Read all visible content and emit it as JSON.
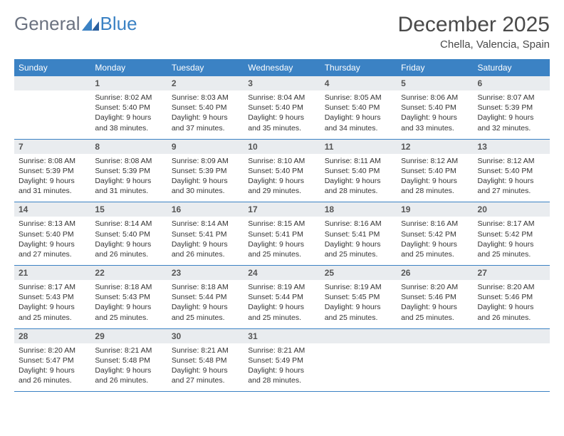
{
  "logo": {
    "general": "General",
    "blue": "Blue"
  },
  "title": "December 2025",
  "location": "Chella, Valencia, Spain",
  "colors": {
    "header_bg": "#3b82c4",
    "header_text": "#ffffff",
    "daynum_bg": "#e9ecef",
    "border": "#3b82c4",
    "text": "#333333",
    "title_text": "#4a4a4a"
  },
  "weekdays": [
    "Sunday",
    "Monday",
    "Tuesday",
    "Wednesday",
    "Thursday",
    "Friday",
    "Saturday"
  ],
  "weeks": [
    [
      null,
      {
        "n": "1",
        "sr": "8:02 AM",
        "ss": "5:40 PM",
        "dl": "9 hours and 38 minutes."
      },
      {
        "n": "2",
        "sr": "8:03 AM",
        "ss": "5:40 PM",
        "dl": "9 hours and 37 minutes."
      },
      {
        "n": "3",
        "sr": "8:04 AM",
        "ss": "5:40 PM",
        "dl": "9 hours and 35 minutes."
      },
      {
        "n": "4",
        "sr": "8:05 AM",
        "ss": "5:40 PM",
        "dl": "9 hours and 34 minutes."
      },
      {
        "n": "5",
        "sr": "8:06 AM",
        "ss": "5:40 PM",
        "dl": "9 hours and 33 minutes."
      },
      {
        "n": "6",
        "sr": "8:07 AM",
        "ss": "5:39 PM",
        "dl": "9 hours and 32 minutes."
      }
    ],
    [
      {
        "n": "7",
        "sr": "8:08 AM",
        "ss": "5:39 PM",
        "dl": "9 hours and 31 minutes."
      },
      {
        "n": "8",
        "sr": "8:08 AM",
        "ss": "5:39 PM",
        "dl": "9 hours and 31 minutes."
      },
      {
        "n": "9",
        "sr": "8:09 AM",
        "ss": "5:39 PM",
        "dl": "9 hours and 30 minutes."
      },
      {
        "n": "10",
        "sr": "8:10 AM",
        "ss": "5:40 PM",
        "dl": "9 hours and 29 minutes."
      },
      {
        "n": "11",
        "sr": "8:11 AM",
        "ss": "5:40 PM",
        "dl": "9 hours and 28 minutes."
      },
      {
        "n": "12",
        "sr": "8:12 AM",
        "ss": "5:40 PM",
        "dl": "9 hours and 28 minutes."
      },
      {
        "n": "13",
        "sr": "8:12 AM",
        "ss": "5:40 PM",
        "dl": "9 hours and 27 minutes."
      }
    ],
    [
      {
        "n": "14",
        "sr": "8:13 AM",
        "ss": "5:40 PM",
        "dl": "9 hours and 27 minutes."
      },
      {
        "n": "15",
        "sr": "8:14 AM",
        "ss": "5:40 PM",
        "dl": "9 hours and 26 minutes."
      },
      {
        "n": "16",
        "sr": "8:14 AM",
        "ss": "5:41 PM",
        "dl": "9 hours and 26 minutes."
      },
      {
        "n": "17",
        "sr": "8:15 AM",
        "ss": "5:41 PM",
        "dl": "9 hours and 25 minutes."
      },
      {
        "n": "18",
        "sr": "8:16 AM",
        "ss": "5:41 PM",
        "dl": "9 hours and 25 minutes."
      },
      {
        "n": "19",
        "sr": "8:16 AM",
        "ss": "5:42 PM",
        "dl": "9 hours and 25 minutes."
      },
      {
        "n": "20",
        "sr": "8:17 AM",
        "ss": "5:42 PM",
        "dl": "9 hours and 25 minutes."
      }
    ],
    [
      {
        "n": "21",
        "sr": "8:17 AM",
        "ss": "5:43 PM",
        "dl": "9 hours and 25 minutes."
      },
      {
        "n": "22",
        "sr": "8:18 AM",
        "ss": "5:43 PM",
        "dl": "9 hours and 25 minutes."
      },
      {
        "n": "23",
        "sr": "8:18 AM",
        "ss": "5:44 PM",
        "dl": "9 hours and 25 minutes."
      },
      {
        "n": "24",
        "sr": "8:19 AM",
        "ss": "5:44 PM",
        "dl": "9 hours and 25 minutes."
      },
      {
        "n": "25",
        "sr": "8:19 AM",
        "ss": "5:45 PM",
        "dl": "9 hours and 25 minutes."
      },
      {
        "n": "26",
        "sr": "8:20 AM",
        "ss": "5:46 PM",
        "dl": "9 hours and 25 minutes."
      },
      {
        "n": "27",
        "sr": "8:20 AM",
        "ss": "5:46 PM",
        "dl": "9 hours and 26 minutes."
      }
    ],
    [
      {
        "n": "28",
        "sr": "8:20 AM",
        "ss": "5:47 PM",
        "dl": "9 hours and 26 minutes."
      },
      {
        "n": "29",
        "sr": "8:21 AM",
        "ss": "5:48 PM",
        "dl": "9 hours and 26 minutes."
      },
      {
        "n": "30",
        "sr": "8:21 AM",
        "ss": "5:48 PM",
        "dl": "9 hours and 27 minutes."
      },
      {
        "n": "31",
        "sr": "8:21 AM",
        "ss": "5:49 PM",
        "dl": "9 hours and 28 minutes."
      },
      null,
      null,
      null
    ]
  ],
  "labels": {
    "sunrise": "Sunrise:",
    "sunset": "Sunset:",
    "daylight": "Daylight:"
  }
}
